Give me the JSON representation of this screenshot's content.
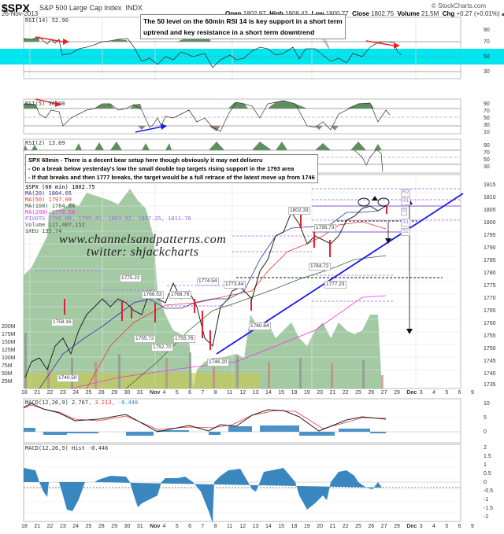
{
  "header": {
    "symbol": "$SPX",
    "name": "S&P 500 Large Cap Index",
    "exchange": "INDX",
    "date": "26-Nov-2013",
    "open_label": "Open",
    "open": "1802.87",
    "high_label": "High",
    "high": "1808.42",
    "low_label": "Low",
    "low": "1800.77",
    "close_label": "Close",
    "close": "1802.75",
    "volume_label": "Volume",
    "volume": "21.5M",
    "chg_label": "Chg",
    "chg": "+0.27 (+0.01%)",
    "brand": "© StockCharts.com"
  },
  "annotations": {
    "rsi14_note_line1": "The 50 level on the 60min RSI 14 is key support in a short term",
    "rsi14_note_line2": "uptrend and key resistance in a short term downtrend",
    "main_note_line1": "SPX 60min - There is a decent bear setup here though obviously it may not deliveru",
    "main_note_line2": "- On a break below yesterday's low the small double top targets rising support in the 1793 area",
    "main_note_line3": "- If that breaks and then 1777 breaks, the target would be a full retrace of the latest move up from 1746"
  },
  "watermark": {
    "site": "www.channelsandpatterns.com",
    "twitter": "twitter: shjackcharts"
  },
  "legend": {
    "price": "$SPX (60 min) 1802.75",
    "ma20": "MA(20) 1804.05",
    "ma50": "MA(50) 1797.09",
    "ma100": "MA(100) 1784.84",
    "ma200": "MA(200) 1770.58",
    "pivots": "PIVOTS 1796.08, 1799.41, 1803.92, 1807.25, 1811.76",
    "volume": "Volume 117,407,152",
    "xeu": "$XEU 135.74"
  },
  "colors": {
    "ma20": "#3333aa",
    "ma50": "#ee3333",
    "ma100": "#336633",
    "ma200": "#ee33ee",
    "pivots": "#9966ee",
    "rsi_band": "#00e5ee",
    "rsi_fill": "#5f8f5f",
    "macd_hist": "#3a87c0",
    "trendline": "#1a1aee",
    "arrow_red": "#ee2222"
  },
  "chart_data": [
    {
      "type": "line",
      "title": "RSI(14) 52.90",
      "ylim": [
        10,
        100
      ],
      "yticks": [
        30,
        50,
        70,
        90
      ],
      "highlight_band": [
        45,
        60
      ],
      "last_value": 52.9
    },
    {
      "type": "line",
      "title": "RSI(5) 36.00",
      "yticks": [
        10,
        30,
        50,
        70,
        90
      ],
      "last_value": 36.0
    },
    {
      "type": "line",
      "title": "RSI(2) 13.69",
      "yticks": [
        10,
        30,
        50,
        70,
        90
      ],
      "last_value": 13.69
    },
    {
      "type": "candlestick",
      "title": "$SPX (60 min) 1802.75",
      "ylim": [
        1733,
        1817
      ],
      "yticks": [
        1735,
        1740,
        1745,
        1750,
        1755,
        1760,
        1765,
        1770,
        1775,
        1780,
        1785,
        1790,
        1795,
        1800,
        1805,
        1810,
        1815
      ],
      "volume_ticks": [
        "25M",
        "50M",
        "75M",
        "100M",
        "125M",
        "150M",
        "175M",
        "200M"
      ],
      "labeled_points": [
        {
          "x": "21",
          "label": "1758.16"
        },
        {
          "x": "22",
          "label": "1740.50"
        },
        {
          "x": "30",
          "label": "1775.22"
        },
        {
          "x": "31",
          "label": "1768.53"
        },
        {
          "x": "31",
          "label": "1755.72"
        },
        {
          "x": "Nov",
          "label": "1752.70"
        },
        {
          "x": "4",
          "label": "1768.78"
        },
        {
          "x": "5",
          "label": "1755.76"
        },
        {
          "x": "7",
          "label": "1774.54"
        },
        {
          "x": "8",
          "label": "1746.20"
        },
        {
          "x": "11",
          "label": "1773.44"
        },
        {
          "x": "12",
          "label": "1760.84"
        },
        {
          "x": "18",
          "label": "1802.33"
        },
        {
          "x": "20",
          "label": "1795.73"
        },
        {
          "x": "20",
          "label": "1784.72"
        },
        {
          "x": "21",
          "label": "1777.23"
        }
      ],
      "pivot_labels": [
        "R2",
        "R1",
        "P",
        "S1",
        "S2"
      ],
      "pivot_values": [
        1811.76,
        1807.25,
        1803.92,
        1799.41,
        1796.08
      ],
      "support_levels": [
        1800,
        1777
      ],
      "targets": [
        1793,
        1746
      ]
    },
    {
      "type": "line",
      "title": "MACD(12,26,9) 2.767, 3.213, -0.446",
      "ylim": [
        -1,
        11
      ],
      "yticks": [
        0,
        5,
        10
      ],
      "series": [
        {
          "name": "MACD",
          "last": 2.767
        },
        {
          "name": "Signal",
          "last": 3.213
        },
        {
          "name": "Hist",
          "last": -0.446
        }
      ]
    },
    {
      "type": "bar",
      "title": "MACD(12,26,9) Hist -0.446",
      "ylim": [
        -2.5,
        2.2
      ],
      "yticks": [
        2.0,
        1.5,
        1.0,
        0.5,
        0.0,
        -0.5,
        -1.0,
        -1.5,
        -2.0
      ],
      "last_value": -0.446
    }
  ],
  "x_axis": [
    "18",
    "21",
    "22",
    "23",
    "24",
    "25",
    "28",
    "29",
    "30",
    "31",
    "Nov",
    "4",
    "5",
    "6",
    "7",
    "8",
    "11",
    "12",
    "13",
    "14",
    "15",
    "18",
    "19",
    "20",
    "21",
    "22",
    "25",
    "26",
    "27",
    "29",
    "Dec",
    "3",
    "4",
    "5",
    "6",
    "9"
  ],
  "rsi_panels": {
    "rsi14_title": "RSI(14) 52.90",
    "rsi5_title": "RSI(5) 36.00",
    "rsi2_title": "RSI(2) 13.69"
  },
  "macd_panels": {
    "macd_title_a": "MACD(12,26,9) 2.767",
    "macd_title_b": ", 3.213",
    "macd_title_c": ", -0.446",
    "hist_title": "MACD(12,26,9) Hist -0.446"
  }
}
